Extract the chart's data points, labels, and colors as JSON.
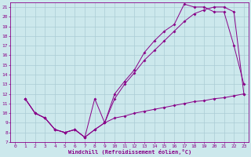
{
  "xlabel": "Windchill (Refroidissement éolien,°C)",
  "bg_color": "#cce8ec",
  "grid_color": "#aaccd4",
  "line_color": "#880088",
  "xlim": [
    -0.5,
    23.5
  ],
  "ylim": [
    7,
    21.5
  ],
  "xticks": [
    0,
    1,
    2,
    3,
    4,
    5,
    6,
    7,
    8,
    9,
    10,
    11,
    12,
    13,
    14,
    15,
    16,
    17,
    18,
    19,
    20,
    21,
    22,
    23
  ],
  "yticks": [
    7,
    8,
    9,
    10,
    11,
    12,
    13,
    14,
    15,
    16,
    17,
    18,
    19,
    20,
    21
  ],
  "line1_x": [
    1,
    2,
    3,
    4,
    5,
    6,
    7,
    8,
    9,
    10,
    11,
    12,
    13,
    14,
    15,
    16,
    17,
    18,
    19,
    20,
    21,
    22,
    23
  ],
  "line1_y": [
    11.5,
    10.0,
    9.5,
    8.3,
    8.0,
    8.3,
    7.5,
    8.3,
    9.0,
    9.5,
    9.7,
    10.0,
    10.2,
    10.4,
    10.6,
    10.8,
    11.0,
    11.2,
    11.3,
    11.5,
    11.6,
    11.8,
    12.0
  ],
  "line2_x": [
    1,
    2,
    3,
    4,
    5,
    6,
    7,
    8,
    9,
    10,
    11,
    12,
    13,
    14,
    15,
    16,
    17,
    18,
    19,
    20,
    21,
    22,
    23
  ],
  "line2_y": [
    11.5,
    10.0,
    9.5,
    8.3,
    8.0,
    8.3,
    7.5,
    11.5,
    9.0,
    12.0,
    13.3,
    14.5,
    16.3,
    17.5,
    18.5,
    19.2,
    21.3,
    21.0,
    21.0,
    20.5,
    20.5,
    17.0,
    13.0
  ],
  "line3_x": [
    1,
    2,
    3,
    4,
    5,
    6,
    7,
    8,
    9,
    10,
    11,
    12,
    13,
    14,
    15,
    16,
    17,
    18,
    19,
    20,
    21,
    22,
    23
  ],
  "line3_y": [
    11.5,
    10.0,
    9.5,
    8.3,
    8.0,
    8.3,
    7.5,
    8.3,
    9.0,
    11.5,
    13.0,
    14.2,
    15.5,
    16.5,
    17.5,
    18.5,
    19.5,
    20.3,
    20.7,
    21.0,
    21.0,
    20.5,
    12.0
  ]
}
